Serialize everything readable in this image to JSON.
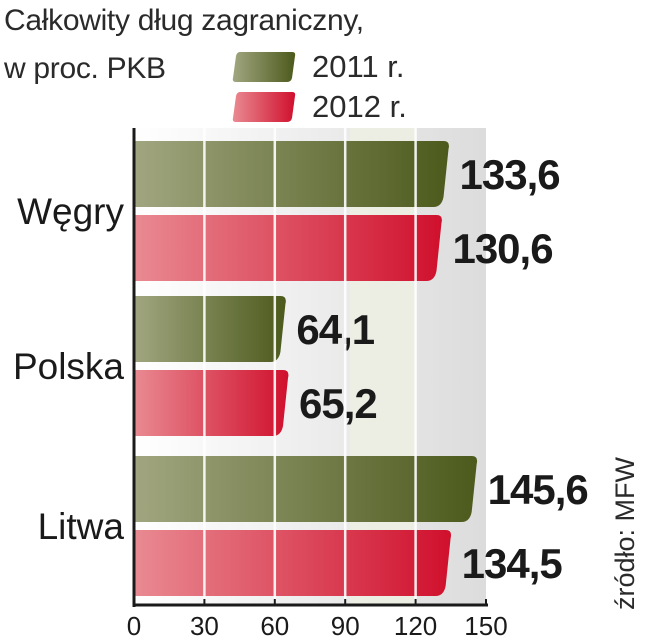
{
  "chart_data": {
    "type": "bar",
    "orientation": "horizontal",
    "title": "Całkowity dług zagraniczny,",
    "subtitle": "w proc. PKB",
    "categories": [
      "Węgry",
      "Polska",
      "Litwa"
    ],
    "series": [
      {
        "name": "2011 r.",
        "color": "#5c6b2c",
        "values": [
          133.6,
          64.1,
          145.6
        ],
        "labels": [
          "133,6",
          "64,1",
          "145,6"
        ]
      },
      {
        "name": "2012 r.",
        "color": "#d81e3a",
        "values": [
          130.6,
          65.2,
          134.5
        ],
        "labels": [
          "130,6",
          "65,2",
          "134,5"
        ]
      }
    ],
    "xlim": [
      0,
      150
    ],
    "xticks": [
      0,
      30,
      60,
      90,
      120,
      150
    ],
    "grid": true,
    "legend": "top-right",
    "source": "źródło: MFW"
  }
}
